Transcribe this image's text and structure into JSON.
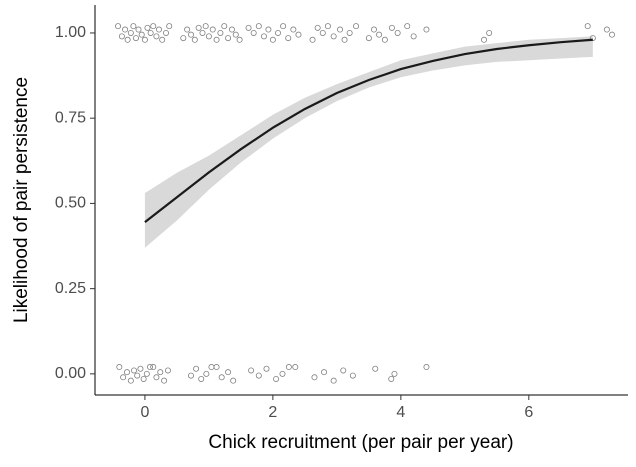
{
  "chart_data": {
    "type": "scatter",
    "x_label": "Chick recruitment (per pair per year)",
    "y_label": "Likelihood of pair persistence",
    "xlim": [
      -0.78,
      7.55
    ],
    "ylim": [
      -0.062,
      1.082
    ],
    "xticks": [
      0,
      2,
      4,
      6
    ],
    "yticks": [
      {
        "value": 0,
        "label": "0.00"
      },
      {
        "value": 0.25,
        "label": "0.25"
      },
      {
        "value": 0.5,
        "label": "0.50"
      },
      {
        "value": 0.75,
        "label": "0.75"
      },
      {
        "value": 1,
        "label": "1.00"
      }
    ],
    "points": {
      "color": "#808080",
      "x": [
        -0.42,
        -0.36,
        -0.31,
        -0.27,
        -0.22,
        -0.18,
        -0.14,
        -0.1,
        -0.05,
        0,
        0.04,
        0.09,
        0.13,
        0.18,
        0.22,
        0.27,
        0.33,
        0.38,
        0.6,
        0.66,
        0.72,
        0.78,
        0.84,
        0.9,
        0.95,
        1.0,
        1.06,
        1.12,
        1.18,
        1.24,
        1.3,
        1.36,
        1.42,
        1.48,
        1.62,
        1.7,
        1.78,
        1.86,
        1.93,
        2.0,
        2.08,
        2.16,
        2.24,
        2.32,
        2.4,
        2.62,
        2.7,
        2.78,
        2.86,
        2.95,
        3.05,
        3.12,
        3.2,
        3.3,
        3.5,
        3.58,
        3.66,
        3.75,
        3.86,
        3.95,
        4.1,
        4.2,
        4.4,
        5.3,
        5.38,
        6.92,
        7.0,
        7.22,
        7.3,
        -0.4,
        -0.34,
        -0.28,
        -0.22,
        -0.17,
        -0.12,
        -0.07,
        -0.02,
        0.03,
        0.08,
        0.13,
        0.18,
        0.24,
        0.3,
        0.36,
        0.72,
        0.8,
        0.88,
        0.96,
        1.04,
        1.12,
        1.2,
        1.3,
        1.38,
        1.66,
        1.78,
        1.9,
        2.05,
        2.15,
        2.25,
        2.35,
        2.65,
        2.8,
        2.95,
        3.1,
        3.25,
        3.6,
        3.85,
        3.9,
        4.4
      ],
      "y": [
        1.02,
        0.99,
        1.01,
        0.98,
        1.0,
        1.02,
        0.985,
        1.01,
        0.995,
        0.98,
        1.015,
        1.0,
        1.02,
        0.99,
        1.01,
        0.98,
        1.0,
        1.02,
        0.985,
        1.01,
        0.995,
        0.98,
        1.015,
        1.0,
        1.02,
        0.99,
        1.01,
        0.98,
        1.0,
        1.02,
        0.985,
        1.01,
        0.995,
        0.98,
        1.015,
        1.0,
        1.02,
        0.99,
        1.01,
        0.98,
        1.0,
        1.02,
        0.985,
        1.01,
        0.995,
        0.98,
        1.015,
        1.0,
        1.02,
        0.99,
        1.01,
        0.98,
        1.0,
        1.02,
        0.985,
        1.01,
        0.995,
        0.98,
        1.015,
        1.0,
        1.02,
        0.99,
        1.01,
        0.98,
        1.0,
        1.02,
        0.985,
        1.01,
        0.995,
        0.02,
        -0.01,
        0.005,
        -0.02,
        0.01,
        -0.005,
        0.015,
        -0.015,
        0,
        0.02,
        0.02,
        -0.01,
        0.005,
        -0.02,
        0.01,
        -0.005,
        0.015,
        -0.015,
        0,
        0.02,
        0.02,
        -0.01,
        0.005,
        -0.02,
        0.01,
        -0.005,
        0.015,
        -0.015,
        0,
        0.02,
        0.02,
        -0.01,
        0.005,
        -0.02,
        0.01,
        -0.005,
        0.015,
        -0.015,
        0,
        0.02
      ]
    },
    "fit": {
      "color": "#1a1a1a",
      "band_color": "#d9d9d9",
      "x": [
        0,
        0.5,
        1,
        1.5,
        2,
        2.5,
        3,
        3.5,
        4,
        4.5,
        5,
        5.5,
        6,
        6.5,
        7
      ],
      "y": [
        0.445,
        0.518,
        0.591,
        0.659,
        0.722,
        0.777,
        0.824,
        0.862,
        0.894,
        0.918,
        0.938,
        0.953,
        0.964,
        0.973,
        0.98
      ],
      "lower": [
        0.37,
        0.45,
        0.54,
        0.62,
        0.69,
        0.75,
        0.8,
        0.84,
        0.87,
        0.89,
        0.905,
        0.915,
        0.92,
        0.925,
        0.93
      ],
      "upper": [
        0.53,
        0.59,
        0.64,
        0.7,
        0.76,
        0.81,
        0.85,
        0.885,
        0.92,
        0.94,
        0.96,
        0.97,
        0.98,
        0.985,
        0.99
      ]
    }
  }
}
